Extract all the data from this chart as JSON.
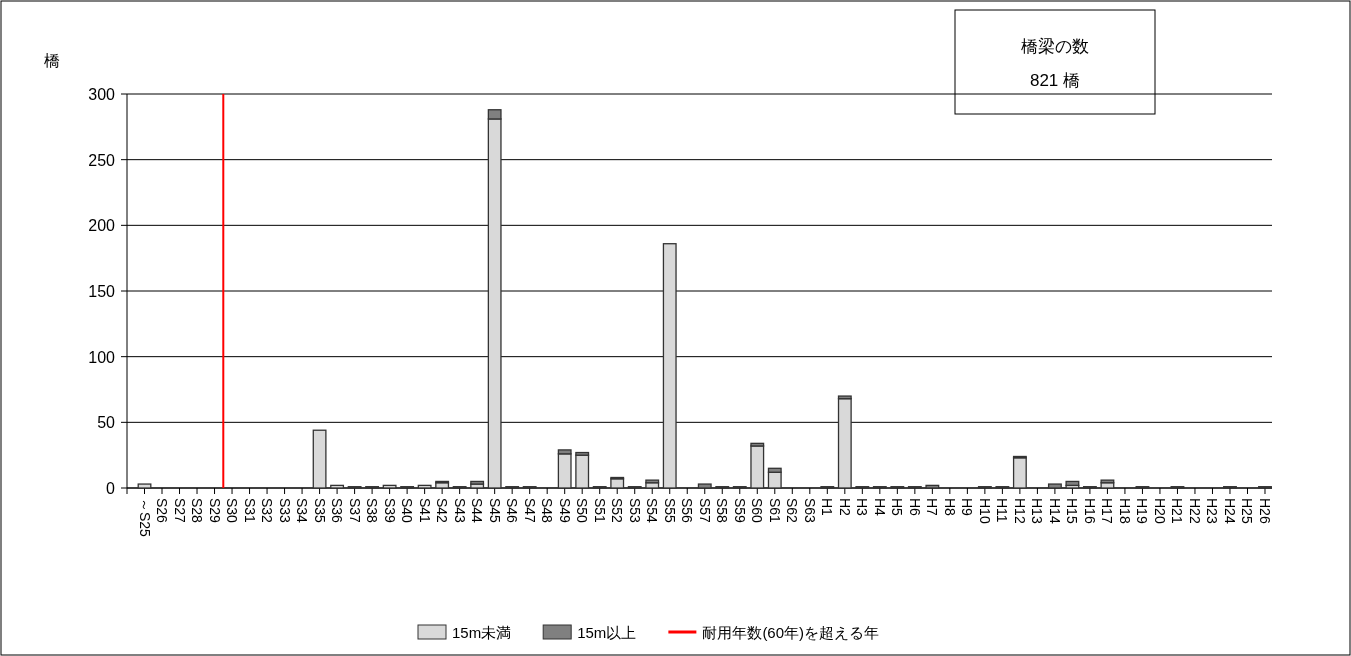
{
  "chart_data": {
    "type": "bar",
    "stacked": true,
    "ylabel": "橋",
    "categories": [
      "～S25",
      "S26",
      "S27",
      "S28",
      "S29",
      "S30",
      "S31",
      "S32",
      "S33",
      "S34",
      "S35",
      "S36",
      "S37",
      "S38",
      "S39",
      "S40",
      "S41",
      "S42",
      "S43",
      "S44",
      "S45",
      "S46",
      "S47",
      "S48",
      "S49",
      "S50",
      "S51",
      "S52",
      "S53",
      "S54",
      "S55",
      "S56",
      "S57",
      "S58",
      "S59",
      "S60",
      "S61",
      "S62",
      "S63",
      "H1",
      "H2",
      "H3",
      "H4",
      "H5",
      "H6",
      "H7",
      "H8",
      "H9",
      "H10",
      "H11",
      "H12",
      "H13",
      "H14",
      "H15",
      "H16",
      "H17",
      "H18",
      "H19",
      "H20",
      "H21",
      "H22",
      "H23",
      "H24",
      "H25",
      "H26"
    ],
    "series": [
      {
        "name": "15m未満",
        "color": "#d9d9d9",
        "values": [
          3,
          0,
          0,
          0,
          0,
          0,
          0,
          0,
          0,
          0,
          44,
          2,
          1,
          1,
          2,
          1,
          2,
          4,
          1,
          3,
          281,
          1,
          1,
          0,
          26,
          25,
          1,
          7,
          1,
          4,
          186,
          0,
          0,
          1,
          1,
          32,
          12,
          0,
          0,
          1,
          68,
          1,
          1,
          1,
          1,
          0,
          0,
          0,
          1,
          1,
          23,
          0,
          0,
          2,
          1,
          4,
          0,
          1,
          0,
          1,
          0,
          0,
          1,
          0,
          1
        ]
      },
      {
        "name": "15m以上",
        "color": "#808080",
        "values": [
          0,
          0,
          0,
          0,
          0,
          0,
          0,
          0,
          0,
          0,
          0,
          0,
          0,
          0,
          0,
          0,
          0,
          1,
          0,
          2,
          7,
          0,
          0,
          0,
          3,
          2,
          0,
          1,
          0,
          2,
          0,
          0,
          3,
          0,
          0,
          2,
          3,
          0,
          0,
          0,
          2,
          0,
          0,
          0,
          0,
          2,
          0,
          0,
          0,
          0,
          1,
          0,
          3,
          3,
          0,
          2,
          0,
          0,
          0,
          0,
          0,
          0,
          0,
          0,
          0
        ]
      }
    ],
    "ylim": [
      0,
      300
    ],
    "yticks": [
      0,
      50,
      100,
      150,
      200,
      250,
      300
    ],
    "grid": "y",
    "legend": "bottom",
    "ref_lines": [
      {
        "axis": "x",
        "value": "S30",
        "label": "耐用年数(60年)を超える年",
        "color": "#ff0000"
      }
    ],
    "annotations": [
      "橋梁の数",
      "821 橋"
    ]
  }
}
